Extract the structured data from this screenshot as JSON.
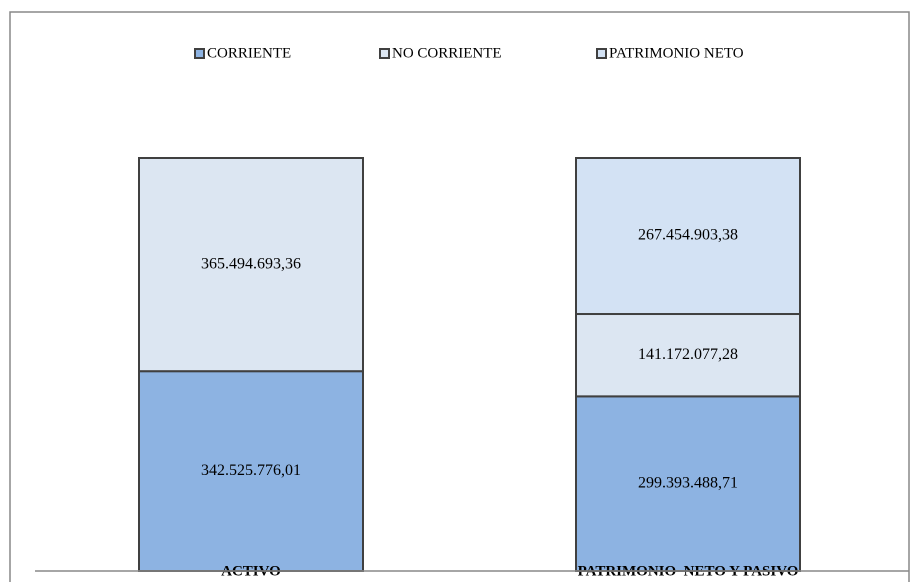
{
  "chart_data": {
    "type": "stacked_bar",
    "categories": [
      "ACTIVO",
      "PATRIMONIO  NETO Y PASIVO"
    ],
    "series": [
      {
        "name": "CORRIENTE",
        "color": "#8db3e2",
        "values": [
          342525776.01,
          299393488.71
        ],
        "value_labels": [
          "342.525.776,01",
          "299.393.488,71"
        ]
      },
      {
        "name": "NO CORRIENTE",
        "color": "#dce6f2",
        "values": [
          365494693.36,
          141172077.28
        ],
        "value_labels": [
          "365.494.693,36",
          "141.172.077,28"
        ]
      },
      {
        "name": "PATRIMONIO NETO",
        "color": "#d3e2f4",
        "values": [
          null,
          267454903.38
        ],
        "value_labels": [
          null,
          "267.454.903,38"
        ]
      }
    ],
    "legend": "top"
  }
}
